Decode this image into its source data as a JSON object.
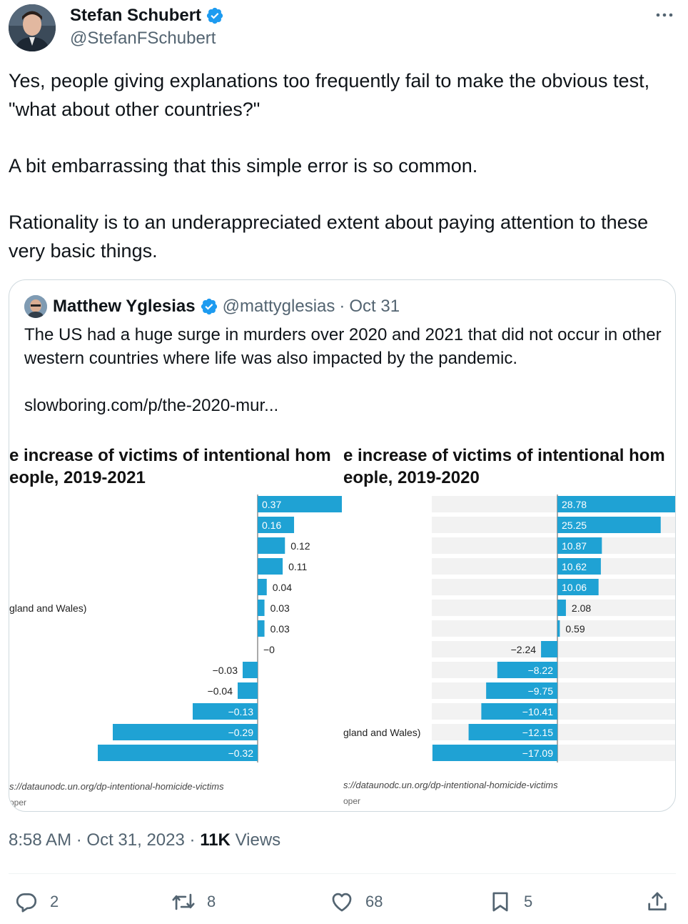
{
  "author": {
    "name": "Stefan Schubert",
    "handle": "@StefanFSchubert"
  },
  "tweet": {
    "paragraphs": [
      "Yes, people giving explanations too frequently fail to make the obvious test, \"what about other countries?\"",
      "A bit embarrassing that this simple error is so common.",
      "Rationality is to an underappreciated extent about paying attention to these very basic things."
    ]
  },
  "quote": {
    "name": "Matthew Yglesias",
    "handle": "@mattyglesias",
    "separator": "·",
    "date": "Oct 31",
    "text": "The US had a huge surge in murders over 2020 and 2021 that did not occur in other western countries where life was also impacted by the pandemic.",
    "link": "slowboring.com/p/the-2020-mur..."
  },
  "chart_data": [
    {
      "type": "bar",
      "title_lines": [
        "e increase of victims of intentional hom",
        "eople, 2019-2021"
      ],
      "visible_category_label": "gland and Wales)",
      "values": [
        0.37,
        0.16,
        0.12,
        0.11,
        0.04,
        0.03,
        0.03,
        0,
        -0.03,
        -0.04,
        -0.13,
        -0.29,
        -0.32
      ],
      "labels": [
        "0.37",
        "0.16",
        "0.12",
        "0.11",
        "0.04",
        "0.03",
        "0.03",
        "−0",
        "−0.03",
        "−0.04",
        "−0.13",
        "−0.29",
        "−0.32"
      ],
      "source": "s://dataunodc.un.org/dp-intentional-homicide-victims",
      "footer": "oper",
      "bar_color": "#1fa2d4"
    },
    {
      "type": "bar",
      "title_lines": [
        "e increase of victims of intentional hom",
        "eople, 2019-2020"
      ],
      "visible_category_label": "gland and Wales)",
      "values": [
        28.78,
        25.25,
        10.87,
        10.62,
        10.06,
        2.08,
        0.59,
        -2.24,
        -8.22,
        -9.75,
        -10.41,
        -12.15,
        -17.09
      ],
      "labels": [
        "28.78",
        "25.25",
        "10.87",
        "10.62",
        "10.06",
        "2.08",
        "0.59",
        "−2.24",
        "−8.22",
        "−9.75",
        "−10.41",
        "−12.15",
        "−17.09"
      ],
      "source": "s://dataunodc.un.org/dp-intentional-homicide-victims",
      "footer": "oper",
      "bar_color": "#1fa2d4"
    }
  ],
  "meta": {
    "time": "8:58 AM",
    "dot": "·",
    "date": "Oct 31, 2023",
    "views_count": "11K",
    "views_label": "Views"
  },
  "actions": {
    "replies": "2",
    "reposts": "8",
    "likes": "68",
    "bookmarks": "5"
  },
  "icons": [
    "verified-icon",
    "more-icon",
    "reply-icon",
    "repost-icon",
    "like-icon",
    "bookmark-icon",
    "share-icon"
  ],
  "colors": {
    "verified": "#1d9bf0",
    "secondary_text": "#536471",
    "bar": "#1fa2d4"
  }
}
